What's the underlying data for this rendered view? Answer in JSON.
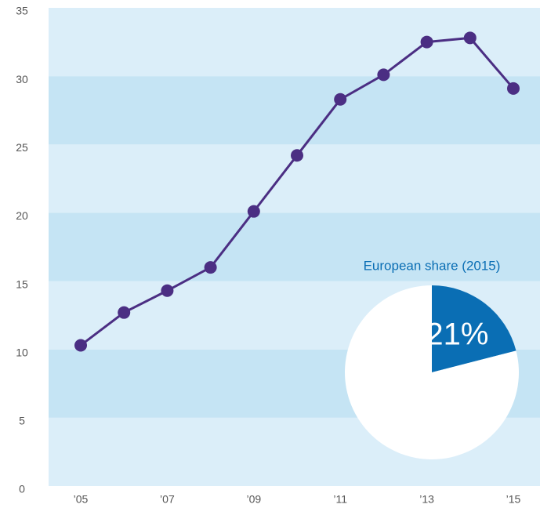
{
  "chart_data": [
    {
      "type": "line",
      "categories": [
        "’05",
        null,
        "’07",
        null,
        "’09",
        null,
        "’11",
        null,
        "’13",
        null,
        "’15"
      ],
      "series": [
        {
          "color": "#4b2e83",
          "values": [
            10.3,
            12.7,
            14.3,
            16.0,
            20.1,
            24.2,
            28.3,
            30.1,
            32.5,
            32.8,
            29.1
          ]
        }
      ],
      "ylim": [
        0,
        35
      ],
      "yticks": [
        0,
        5,
        10,
        15,
        20,
        25,
        30,
        35
      ],
      "band_colors": [
        "#dbeef9",
        "#c5e4f4"
      ]
    },
    {
      "type": "pie",
      "title": "European share (2015)",
      "values": [
        21,
        79
      ],
      "value_labels": [
        "21%",
        null
      ],
      "colors": [
        "#0a6eb4",
        "#ffffff"
      ]
    }
  ]
}
